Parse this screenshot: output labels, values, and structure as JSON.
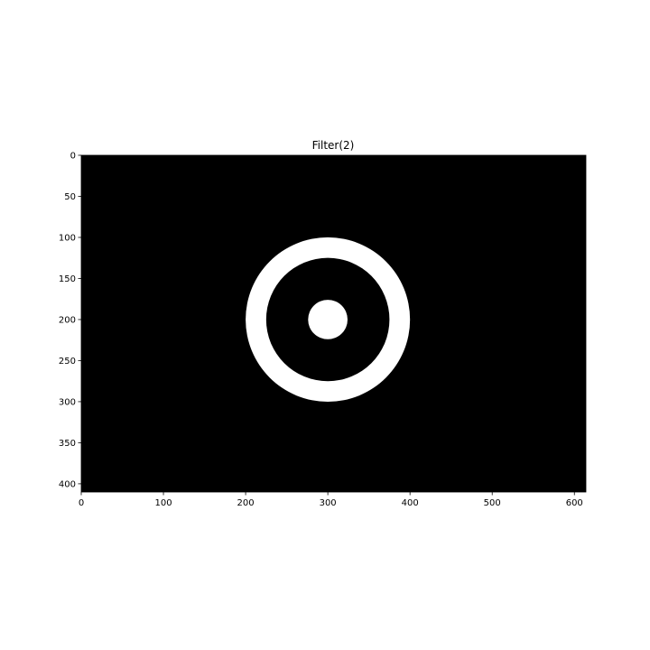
{
  "chart_data": {
    "type": "heatmap",
    "title": "Filter(2)",
    "image_size": {
      "width": 614,
      "height": 410
    },
    "xlim": [
      0,
      614
    ],
    "ylim": [
      410,
      0
    ],
    "x_ticks": [
      0,
      100,
      200,
      300,
      400,
      500,
      600
    ],
    "y_ticks": [
      0,
      50,
      100,
      150,
      200,
      250,
      300,
      350,
      400
    ],
    "x_tick_labels": [
      "0",
      "100",
      "200",
      "300",
      "400",
      "500",
      "600"
    ],
    "y_tick_labels": [
      "0",
      "50",
      "100",
      "150",
      "200",
      "250",
      "300",
      "350",
      "400"
    ],
    "background_color": "#000000",
    "foreground_color": "#ffffff",
    "colormap": "gray",
    "shapes": [
      {
        "kind": "ring",
        "center": [
          300,
          200
        ],
        "outer_radius": 100,
        "inner_radius": 75
      },
      {
        "kind": "disk",
        "center": [
          300,
          200
        ],
        "radius": 24
      }
    ]
  }
}
